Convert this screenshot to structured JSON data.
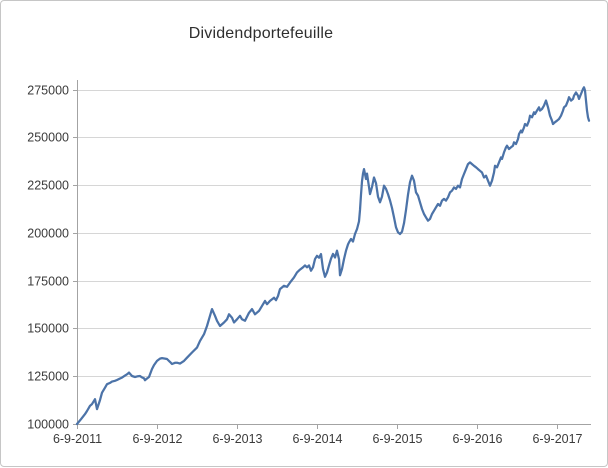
{
  "colors": {
    "series_line": "#4c73a8",
    "gridline": "#d6d6d6",
    "axis": "#a3a3a3",
    "label_text": "#3b3b3b",
    "title_text": "#2f2f2f",
    "frame_border": "#c6c6c6",
    "background": "#ffffff"
  },
  "chart_data": {
    "type": "line",
    "title": "Dividendportefeuille",
    "legend": "none",
    "grid": "horizontal",
    "x_axis": {
      "tick_labels": [
        "6-9-2011",
        "6-9-2012",
        "6-9-2013",
        "6-9-2014",
        "6-9-2015",
        "6-9-2016",
        "6-9-2017"
      ],
      "tick_positions_years": [
        0,
        1,
        2,
        3,
        4,
        5,
        6
      ],
      "range_years": [
        0,
        6.43
      ]
    },
    "y_axis": {
      "ticks": [
        100000,
        125000,
        150000,
        175000,
        200000,
        225000,
        250000,
        275000
      ],
      "ylim": [
        100000,
        280000
      ]
    },
    "series": [
      {
        "name": "Dividendportefeuille",
        "color": "#4c73a8",
        "points": [
          [
            0.0,
            100000
          ],
          [
            0.05,
            102500
          ],
          [
            0.1,
            105200
          ],
          [
            0.125,
            106800
          ],
          [
            0.163,
            109500
          ],
          [
            0.188,
            110400
          ],
          [
            0.225,
            113000
          ],
          [
            0.25,
            107800
          ],
          [
            0.288,
            112500
          ],
          [
            0.313,
            116400
          ],
          [
            0.35,
            119000
          ],
          [
            0.375,
            120800
          ],
          [
            0.413,
            121500
          ],
          [
            0.438,
            122200
          ],
          [
            0.475,
            122600
          ],
          [
            0.5,
            123000
          ],
          [
            0.538,
            123800
          ],
          [
            0.563,
            124300
          ],
          [
            0.6,
            125300
          ],
          [
            0.625,
            126000
          ],
          [
            0.65,
            126900
          ],
          [
            0.688,
            125100
          ],
          [
            0.725,
            124600
          ],
          [
            0.763,
            125000
          ],
          [
            0.788,
            125100
          ],
          [
            0.813,
            124400
          ],
          [
            0.838,
            123900
          ],
          [
            0.85,
            122900
          ],
          [
            0.875,
            123800
          ],
          [
            0.9,
            124600
          ],
          [
            0.938,
            128800
          ],
          [
            0.963,
            130800
          ],
          [
            1.0,
            133000
          ],
          [
            1.038,
            134200
          ],
          [
            1.063,
            134500
          ],
          [
            1.1,
            134200
          ],
          [
            1.125,
            134000
          ],
          [
            1.163,
            132500
          ],
          [
            1.188,
            131400
          ],
          [
            1.225,
            132000
          ],
          [
            1.25,
            132100
          ],
          [
            1.288,
            131600
          ],
          [
            1.338,
            133000
          ],
          [
            1.375,
            134700
          ],
          [
            1.438,
            137400
          ],
          [
            1.5,
            140000
          ],
          [
            1.538,
            143500
          ],
          [
            1.588,
            147000
          ],
          [
            1.625,
            151300
          ],
          [
            1.663,
            156600
          ],
          [
            1.688,
            160100
          ],
          [
            1.725,
            156600
          ],
          [
            1.75,
            154000
          ],
          [
            1.788,
            151300
          ],
          [
            1.838,
            153100
          ],
          [
            1.875,
            154800
          ],
          [
            1.9,
            157400
          ],
          [
            1.938,
            155600
          ],
          [
            1.963,
            153100
          ],
          [
            2.0,
            154800
          ],
          [
            2.038,
            156600
          ],
          [
            2.063,
            154800
          ],
          [
            2.1,
            154000
          ],
          [
            2.15,
            158200
          ],
          [
            2.188,
            160100
          ],
          [
            2.225,
            157400
          ],
          [
            2.275,
            159200
          ],
          [
            2.313,
            161800
          ],
          [
            2.35,
            164400
          ],
          [
            2.375,
            162700
          ],
          [
            2.413,
            164400
          ],
          [
            2.463,
            166100
          ],
          [
            2.488,
            164800
          ],
          [
            2.513,
            167000
          ],
          [
            2.538,
            170600
          ],
          [
            2.588,
            172300
          ],
          [
            2.625,
            171800
          ],
          [
            2.663,
            174000
          ],
          [
            2.713,
            176700
          ],
          [
            2.75,
            179300
          ],
          [
            2.788,
            180800
          ],
          [
            2.825,
            182000
          ],
          [
            2.85,
            183000
          ],
          [
            2.875,
            182000
          ],
          [
            2.9,
            183000
          ],
          [
            2.925,
            180200
          ],
          [
            2.95,
            182000
          ],
          [
            2.975,
            186300
          ],
          [
            3.0,
            188000
          ],
          [
            3.025,
            187000
          ],
          [
            3.05,
            188900
          ],
          [
            3.075,
            181100
          ],
          [
            3.1,
            177000
          ],
          [
            3.125,
            179300
          ],
          [
            3.15,
            183000
          ],
          [
            3.175,
            186500
          ],
          [
            3.2,
            189000
          ],
          [
            3.225,
            187100
          ],
          [
            3.25,
            190700
          ],
          [
            3.275,
            186300
          ],
          [
            3.288,
            177800
          ],
          [
            3.313,
            181100
          ],
          [
            3.338,
            186300
          ],
          [
            3.363,
            190700
          ],
          [
            3.388,
            194000
          ],
          [
            3.4,
            195100
          ],
          [
            3.425,
            196800
          ],
          [
            3.45,
            195500
          ],
          [
            3.475,
            199400
          ],
          [
            3.5,
            202000
          ],
          [
            3.525,
            206000
          ],
          [
            3.538,
            212000
          ],
          [
            3.55,
            220000
          ],
          [
            3.563,
            227000
          ],
          [
            3.575,
            231000
          ],
          [
            3.588,
            233400
          ],
          [
            3.613,
            228200
          ],
          [
            3.625,
            231000
          ],
          [
            3.65,
            224000
          ],
          [
            3.663,
            220300
          ],
          [
            3.688,
            224000
          ],
          [
            3.713,
            229000
          ],
          [
            3.738,
            226000
          ],
          [
            3.763,
            219000
          ],
          [
            3.788,
            216000
          ],
          [
            3.813,
            219000
          ],
          [
            3.838,
            224700
          ],
          [
            3.863,
            223000
          ],
          [
            3.888,
            220300
          ],
          [
            3.913,
            217000
          ],
          [
            3.938,
            213000
          ],
          [
            3.963,
            208100
          ],
          [
            3.988,
            202900
          ],
          [
            4.013,
            200300
          ],
          [
            4.038,
            199400
          ],
          [
            4.063,
            200600
          ],
          [
            4.088,
            205000
          ],
          [
            4.113,
            212000
          ],
          [
            4.138,
            220000
          ],
          [
            4.163,
            226500
          ],
          [
            4.188,
            229900
          ],
          [
            4.213,
            227300
          ],
          [
            4.238,
            221200
          ],
          [
            4.263,
            219500
          ],
          [
            4.288,
            216000
          ],
          [
            4.313,
            212500
          ],
          [
            4.338,
            209900
          ],
          [
            4.363,
            208100
          ],
          [
            4.388,
            206400
          ],
          [
            4.413,
            207300
          ],
          [
            4.438,
            209900
          ],
          [
            4.463,
            211600
          ],
          [
            4.488,
            213400
          ],
          [
            4.513,
            215100
          ],
          [
            4.538,
            214200
          ],
          [
            4.563,
            216900
          ],
          [
            4.588,
            217800
          ],
          [
            4.613,
            216900
          ],
          [
            4.638,
            218600
          ],
          [
            4.663,
            221200
          ],
          [
            4.688,
            222100
          ],
          [
            4.713,
            223800
          ],
          [
            4.738,
            223000
          ],
          [
            4.763,
            224700
          ],
          [
            4.788,
            223800
          ],
          [
            4.813,
            228200
          ],
          [
            4.838,
            230800
          ],
          [
            4.863,
            233400
          ],
          [
            4.888,
            236000
          ],
          [
            4.913,
            236900
          ],
          [
            4.938,
            236000
          ],
          [
            4.963,
            235100
          ],
          [
            4.988,
            234300
          ],
          [
            5.013,
            233400
          ],
          [
            5.038,
            232500
          ],
          [
            5.063,
            231600
          ],
          [
            5.088,
            229000
          ],
          [
            5.113,
            229900
          ],
          [
            5.138,
            227300
          ],
          [
            5.163,
            224700
          ],
          [
            5.188,
            227300
          ],
          [
            5.213,
            231600
          ],
          [
            5.225,
            235100
          ],
          [
            5.25,
            234300
          ],
          [
            5.275,
            236900
          ],
          [
            5.3,
            239500
          ],
          [
            5.313,
            238700
          ],
          [
            5.338,
            242100
          ],
          [
            5.363,
            244800
          ],
          [
            5.375,
            245600
          ],
          [
            5.4,
            243900
          ],
          [
            5.425,
            244800
          ],
          [
            5.45,
            245600
          ],
          [
            5.463,
            247400
          ],
          [
            5.488,
            246500
          ],
          [
            5.513,
            249100
          ],
          [
            5.525,
            251700
          ],
          [
            5.55,
            253500
          ],
          [
            5.563,
            252600
          ],
          [
            5.588,
            255200
          ],
          [
            5.6,
            257000
          ],
          [
            5.625,
            256100
          ],
          [
            5.65,
            258700
          ],
          [
            5.663,
            261300
          ],
          [
            5.688,
            260500
          ],
          [
            5.713,
            263100
          ],
          [
            5.725,
            262200
          ],
          [
            5.75,
            264000
          ],
          [
            5.775,
            265700
          ],
          [
            5.788,
            264000
          ],
          [
            5.813,
            264800
          ],
          [
            5.838,
            266600
          ],
          [
            5.863,
            269200
          ],
          [
            5.888,
            265700
          ],
          [
            5.913,
            261300
          ],
          [
            5.938,
            258700
          ],
          [
            5.95,
            257000
          ],
          [
            5.975,
            257900
          ],
          [
            6.0,
            258700
          ],
          [
            6.025,
            259600
          ],
          [
            6.05,
            261300
          ],
          [
            6.075,
            264000
          ],
          [
            6.088,
            265700
          ],
          [
            6.113,
            266600
          ],
          [
            6.138,
            269200
          ],
          [
            6.15,
            271000
          ],
          [
            6.175,
            269200
          ],
          [
            6.2,
            270100
          ],
          [
            6.213,
            271800
          ],
          [
            6.238,
            273500
          ],
          [
            6.263,
            271800
          ],
          [
            6.275,
            270100
          ],
          [
            6.3,
            272700
          ],
          [
            6.325,
            275300
          ],
          [
            6.338,
            276200
          ],
          [
            6.35,
            274500
          ],
          [
            6.363,
            269200
          ],
          [
            6.375,
            264000
          ],
          [
            6.388,
            260500
          ],
          [
            6.4,
            258700
          ]
        ]
      }
    ]
  }
}
